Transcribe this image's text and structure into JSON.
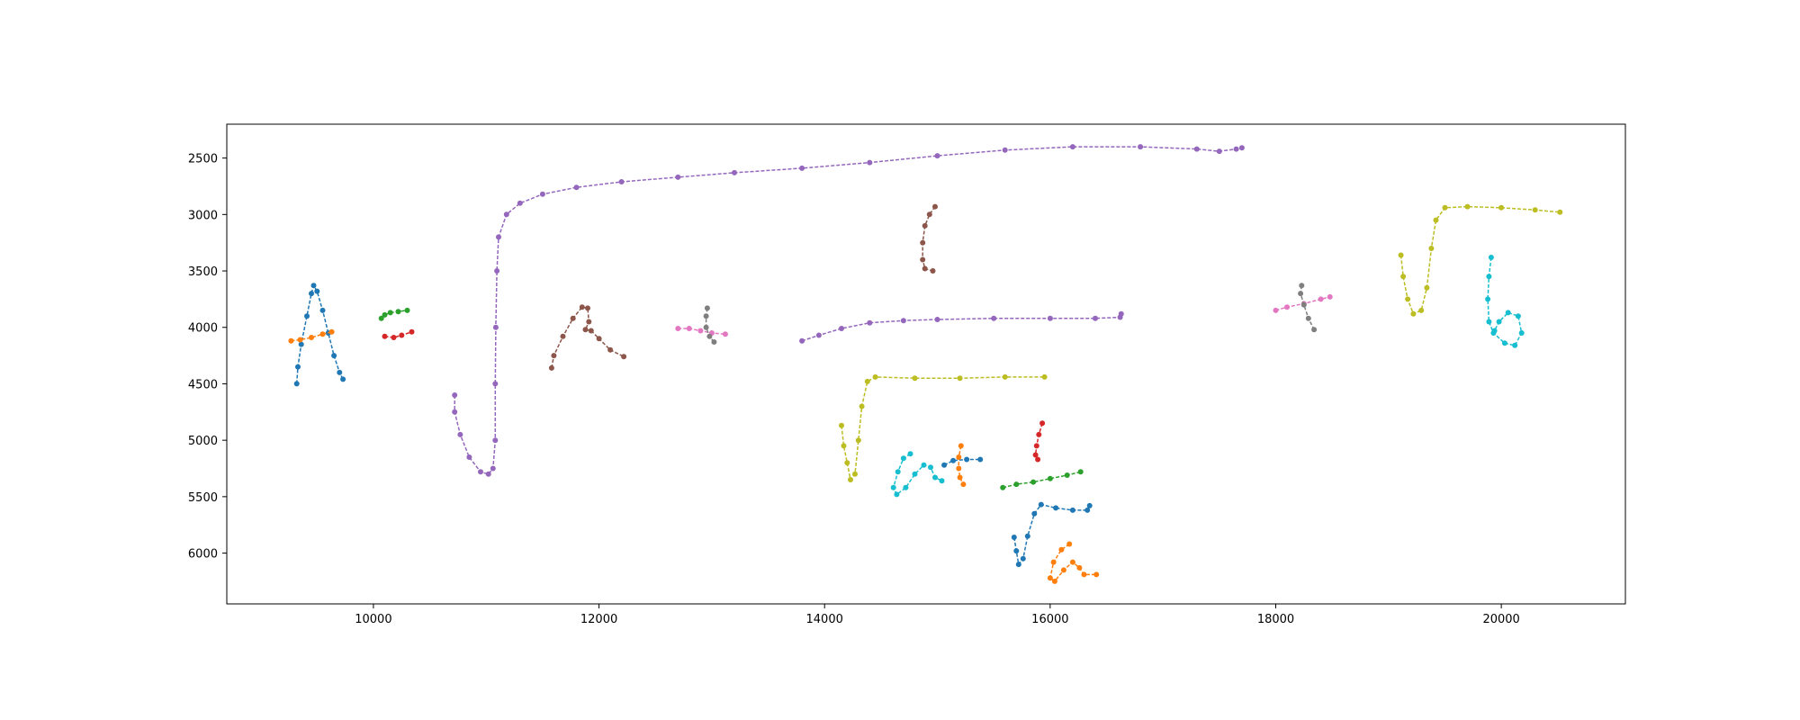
{
  "chart_data": {
    "type": "scatter",
    "title": "",
    "xlabel": "",
    "ylabel": "",
    "xlim": [
      8700,
      21100
    ],
    "ylim": [
      2200,
      6450
    ],
    "y_inverted": true,
    "grid": false,
    "legend": "none",
    "xticks": [
      10000,
      12000,
      14000,
      16000,
      18000,
      20000
    ],
    "yticks": [
      2500,
      3000,
      3500,
      4000,
      4500,
      5000,
      5500,
      6000
    ],
    "series": [
      {
        "color": "#1f77b4",
        "points": [
          [
            9320,
            4500
          ],
          [
            9330,
            4350
          ],
          [
            9360,
            4150
          ],
          [
            9410,
            3900
          ],
          [
            9450,
            3700
          ],
          [
            9470,
            3630
          ],
          [
            9500,
            3680
          ],
          [
            9550,
            3850
          ],
          [
            9600,
            4050
          ],
          [
            9650,
            4250
          ],
          [
            9700,
            4400
          ],
          [
            9730,
            4460
          ]
        ]
      },
      {
        "color": "#ff7f0e",
        "points": [
          [
            9270,
            4120
          ],
          [
            9350,
            4110
          ],
          [
            9450,
            4090
          ],
          [
            9550,
            4060
          ],
          [
            9630,
            4040
          ]
        ]
      },
      {
        "color": "#2ca02c",
        "points": [
          [
            10070,
            3920
          ],
          [
            10100,
            3890
          ],
          [
            10150,
            3870
          ],
          [
            10220,
            3860
          ],
          [
            10300,
            3850
          ]
        ]
      },
      {
        "color": "#d62728",
        "points": [
          [
            10100,
            4080
          ],
          [
            10180,
            4090
          ],
          [
            10250,
            4070
          ],
          [
            10340,
            4040
          ]
        ]
      },
      {
        "color": "#9467bd",
        "points": [
          [
            10720,
            4600
          ],
          [
            10720,
            4750
          ],
          [
            10770,
            4950
          ],
          [
            10850,
            5150
          ],
          [
            10950,
            5280
          ],
          [
            11020,
            5300
          ],
          [
            11060,
            5250
          ],
          [
            11080,
            5000
          ],
          [
            11080,
            4500
          ],
          [
            11085,
            4000
          ],
          [
            11095,
            3500
          ],
          [
            11110,
            3200
          ],
          [
            11180,
            3000
          ],
          [
            11300,
            2900
          ],
          [
            11500,
            2820
          ],
          [
            11800,
            2760
          ],
          [
            12200,
            2710
          ],
          [
            12700,
            2670
          ],
          [
            13200,
            2630
          ],
          [
            13800,
            2590
          ],
          [
            14400,
            2540
          ],
          [
            15000,
            2480
          ],
          [
            15600,
            2430
          ],
          [
            16200,
            2400
          ],
          [
            16800,
            2400
          ],
          [
            17300,
            2420
          ],
          [
            17500,
            2440
          ],
          [
            17650,
            2420
          ],
          [
            17700,
            2410
          ]
        ]
      },
      {
        "color": "#8c564b",
        "points": [
          [
            11580,
            4360
          ],
          [
            11600,
            4250
          ],
          [
            11680,
            4080
          ],
          [
            11770,
            3920
          ],
          [
            11850,
            3820
          ],
          [
            11900,
            3830
          ],
          [
            11910,
            3950
          ],
          [
            11880,
            4020
          ],
          [
            11930,
            4030
          ],
          [
            12000,
            4100
          ],
          [
            12100,
            4200
          ],
          [
            12220,
            4260
          ]
        ]
      },
      {
        "color": "#e377c2",
        "points": [
          [
            12700,
            4010
          ],
          [
            12800,
            4010
          ],
          [
            12900,
            4030
          ],
          [
            13000,
            4050
          ],
          [
            13120,
            4060
          ]
        ]
      },
      {
        "color": "#7f7f7f",
        "points": [
          [
            12960,
            3830
          ],
          [
            12950,
            3900
          ],
          [
            12950,
            4000
          ],
          [
            12980,
            4080
          ],
          [
            13020,
            4130
          ]
        ]
      },
      {
        "color": "#8c564b",
        "points": [
          [
            14980,
            2930
          ],
          [
            14930,
            3000
          ],
          [
            14890,
            3100
          ],
          [
            14870,
            3250
          ],
          [
            14870,
            3400
          ],
          [
            14890,
            3480
          ],
          [
            14960,
            3500
          ]
        ]
      },
      {
        "color": "#9467bd",
        "points": [
          [
            13800,
            4120
          ],
          [
            13950,
            4070
          ],
          [
            14150,
            4010
          ],
          [
            14400,
            3960
          ],
          [
            14700,
            3940
          ],
          [
            15000,
            3930
          ],
          [
            15500,
            3920
          ],
          [
            16000,
            3920
          ],
          [
            16400,
            3920
          ],
          [
            16620,
            3910
          ],
          [
            16630,
            3880
          ]
        ]
      },
      {
        "color": "#bcbd22",
        "points": [
          [
            14150,
            4870
          ],
          [
            14170,
            5050
          ],
          [
            14200,
            5200
          ],
          [
            14230,
            5350
          ],
          [
            14270,
            5300
          ],
          [
            14300,
            5000
          ],
          [
            14330,
            4700
          ],
          [
            14380,
            4480
          ],
          [
            14450,
            4440
          ],
          [
            14800,
            4450
          ],
          [
            15200,
            4450
          ],
          [
            15600,
            4440
          ],
          [
            15950,
            4440
          ]
        ]
      },
      {
        "color": "#17becf",
        "points": [
          [
            14760,
            5120
          ],
          [
            14700,
            5160
          ],
          [
            14650,
            5280
          ],
          [
            14610,
            5420
          ],
          [
            14640,
            5480
          ],
          [
            14720,
            5420
          ],
          [
            14800,
            5300
          ],
          [
            14880,
            5220
          ],
          [
            14940,
            5240
          ],
          [
            14980,
            5330
          ],
          [
            15040,
            5360
          ]
        ]
      },
      {
        "color": "#1f77b4",
        "points": [
          [
            15060,
            5220
          ],
          [
            15140,
            5180
          ],
          [
            15260,
            5170
          ],
          [
            15380,
            5170
          ]
        ]
      },
      {
        "color": "#ff7f0e",
        "points": [
          [
            15210,
            5050
          ],
          [
            15190,
            5150
          ],
          [
            15190,
            5250
          ],
          [
            15200,
            5330
          ],
          [
            15230,
            5390
          ]
        ]
      },
      {
        "color": "#d62728",
        "points": [
          [
            15930,
            4850
          ],
          [
            15900,
            4950
          ],
          [
            15880,
            5050
          ],
          [
            15870,
            5130
          ],
          [
            15890,
            5170
          ]
        ]
      },
      {
        "color": "#2ca02c",
        "points": [
          [
            15580,
            5420
          ],
          [
            15700,
            5390
          ],
          [
            15850,
            5370
          ],
          [
            16000,
            5340
          ],
          [
            16150,
            5310
          ],
          [
            16270,
            5280
          ]
        ]
      },
      {
        "color": "#1f77b4",
        "points": [
          [
            15680,
            5860
          ],
          [
            15700,
            5980
          ],
          [
            15720,
            6100
          ],
          [
            15760,
            6050
          ],
          [
            15800,
            5850
          ],
          [
            15860,
            5650
          ],
          [
            15920,
            5570
          ],
          [
            16050,
            5600
          ],
          [
            16200,
            5620
          ],
          [
            16330,
            5620
          ],
          [
            16350,
            5580
          ]
        ]
      },
      {
        "color": "#ff7f0e",
        "points": [
          [
            16170,
            5920
          ],
          [
            16100,
            5970
          ],
          [
            16030,
            6080
          ],
          [
            16000,
            6220
          ],
          [
            16040,
            6250
          ],
          [
            16120,
            6150
          ],
          [
            16200,
            6080
          ],
          [
            16260,
            6130
          ],
          [
            16300,
            6190
          ],
          [
            16410,
            6190
          ]
        ]
      },
      {
        "color": "#e377c2",
        "points": [
          [
            18000,
            3850
          ],
          [
            18100,
            3820
          ],
          [
            18250,
            3790
          ],
          [
            18400,
            3750
          ],
          [
            18480,
            3730
          ]
        ]
      },
      {
        "color": "#7f7f7f",
        "points": [
          [
            18230,
            3630
          ],
          [
            18220,
            3700
          ],
          [
            18250,
            3800
          ],
          [
            18290,
            3920
          ],
          [
            18340,
            4020
          ]
        ]
      },
      {
        "color": "#bcbd22",
        "points": [
          [
            19110,
            3360
          ],
          [
            19130,
            3550
          ],
          [
            19170,
            3750
          ],
          [
            19220,
            3880
          ],
          [
            19290,
            3850
          ],
          [
            19340,
            3650
          ],
          [
            19380,
            3300
          ],
          [
            19420,
            3050
          ],
          [
            19500,
            2940
          ],
          [
            19700,
            2930
          ],
          [
            20000,
            2940
          ],
          [
            20300,
            2960
          ],
          [
            20520,
            2980
          ]
        ]
      },
      {
        "color": "#17becf",
        "points": [
          [
            19910,
            3380
          ],
          [
            19890,
            3550
          ],
          [
            19880,
            3750
          ],
          [
            19890,
            3950
          ],
          [
            19930,
            4050
          ],
          [
            20030,
            4140
          ],
          [
            20120,
            4160
          ],
          [
            20180,
            4050
          ],
          [
            20150,
            3900
          ],
          [
            20060,
            3870
          ],
          [
            19980,
            3950
          ],
          [
            19940,
            4030
          ]
        ]
      }
    ]
  }
}
